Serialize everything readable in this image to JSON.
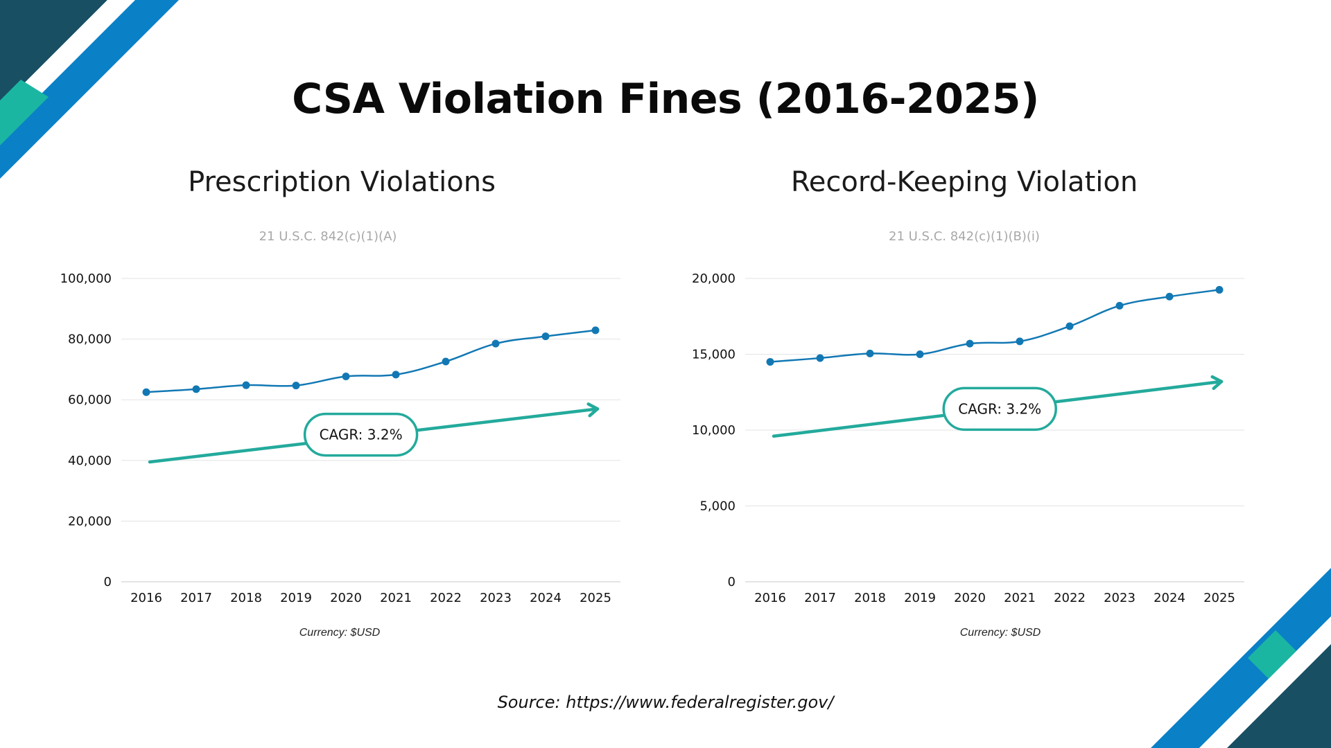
{
  "title": "CSA Violation Fines (2016-2025)",
  "source": "Source: https://www.federalregister.gov/",
  "colors": {
    "line": "#1278b4",
    "trend": "#23aa9c",
    "grid": "#e3e3e3",
    "deco_dark": "#184f63",
    "deco_blue": "#0a80c7",
    "deco_teal": "#1bb6a2"
  },
  "chart_data": [
    {
      "type": "line",
      "title": "Prescription Violations",
      "subtitle": "21 U.S.C. 842(c)(1)(A)",
      "currency_note": "Currency: $USD",
      "x": [
        "2016",
        "2017",
        "2018",
        "2019",
        "2020",
        "2021",
        "2022",
        "2023",
        "2024",
        "2025"
      ],
      "series": [
        {
          "values": [
            62500,
            63500,
            64800,
            64700,
            67700,
            68300,
            72600,
            78500,
            80900,
            82900
          ]
        }
      ],
      "ylim": [
        0,
        100000
      ],
      "yticks": [
        0,
        20000,
        40000,
        60000,
        80000,
        100000
      ],
      "ytick_labels": [
        "0",
        "20,000",
        "40,000",
        "60,000",
        "80,000",
        "100,000"
      ],
      "grid": true,
      "trend_arrow": {
        "x_start": "2016",
        "y_start": 39500,
        "x_end": "2025",
        "y_end": 57000
      },
      "annotation": {
        "text": "CAGR: 3.2%",
        "x": "2020.3",
        "y": 48500
      }
    },
    {
      "type": "line",
      "title": "Record-Keeping Violation",
      "subtitle": "21 U.S.C. 842(c)(1)(B)(i)",
      "currency_note": "Currency: $USD",
      "x": [
        "2016",
        "2017",
        "2018",
        "2019",
        "2020",
        "2021",
        "2022",
        "2023",
        "2024",
        "2025"
      ],
      "series": [
        {
          "values": [
            14500,
            14750,
            15050,
            15000,
            15700,
            15850,
            16850,
            18200,
            18800,
            19250
          ]
        }
      ],
      "ylim": [
        0,
        20000
      ],
      "yticks": [
        0,
        5000,
        10000,
        15000,
        20000
      ],
      "ytick_labels": [
        "0",
        "5,000",
        "10,000",
        "15,000",
        "20,000"
      ],
      "grid": true,
      "trend_arrow": {
        "x_start": "2016",
        "y_start": 9600,
        "x_end": "2025",
        "y_end": 13200
      },
      "annotation": {
        "text": "CAGR: 3.2%",
        "x": "2020.6",
        "y": 11400
      }
    }
  ]
}
